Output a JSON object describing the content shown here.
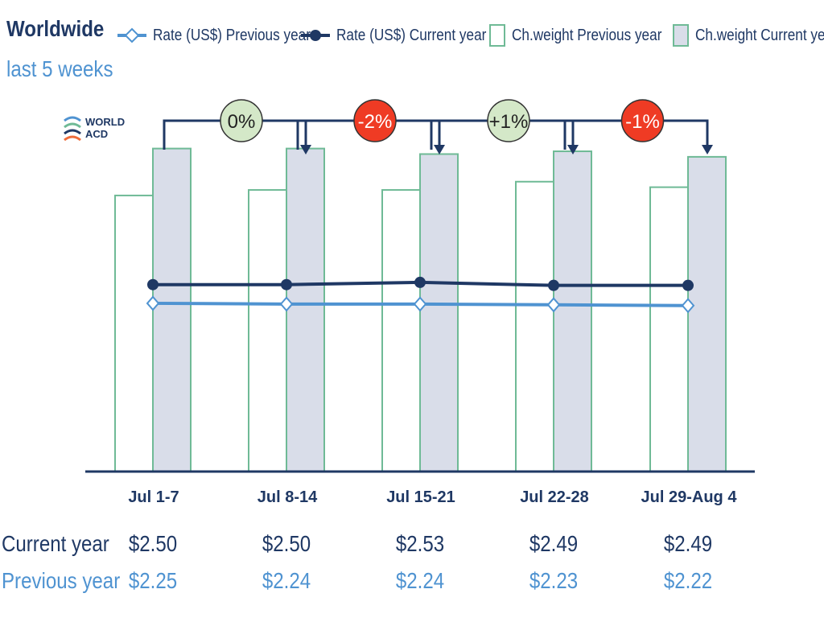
{
  "header": {
    "title": "Worldwide",
    "subtitle": "last 5 weeks"
  },
  "legend": [
    {
      "label": "Rate (US$) Previous year",
      "kind": "line-diamond",
      "color": "#4f93d1"
    },
    {
      "label": "Rate (US$) Current year",
      "kind": "line-dot",
      "color": "#1f3864"
    },
    {
      "label": "Ch.weight Previous year",
      "kind": "bar",
      "color": "#ffffff"
    },
    {
      "label": "Ch.weight Current year",
      "kind": "bar",
      "color": "#d9dde9"
    }
  ],
  "logo": {
    "line1": "WORLD",
    "line2": "ACD"
  },
  "table": {
    "current_label": "Current year",
    "previous_label": "Previous year",
    "current_values": [
      "$2.50",
      "$2.50",
      "$2.53",
      "$2.49",
      "$2.49"
    ],
    "previous_values": [
      "$2.25",
      "$2.24",
      "$2.24",
      "$2.23",
      "$2.22"
    ]
  },
  "colors": {
    "navy": "#1f3864",
    "light_blue": "#4f93d1",
    "bar_border": "#6fba96",
    "bar_current_fill": "#d9dde9",
    "bubble_green": "#d4e8c8",
    "bubble_red": "#ef3b24"
  },
  "chart_data": {
    "type": "bar",
    "categories": [
      "Jul 1-7",
      "Jul 8-14",
      "Jul 15-21",
      "Jul 22-28",
      "Jul 29-Aug 4"
    ],
    "series": [
      {
        "name": "Ch.weight Previous year",
        "type": "bar",
        "values": [
          100,
          102,
          102,
          105,
          103
        ]
      },
      {
        "name": "Ch.weight Current year",
        "type": "bar",
        "values": [
          117,
          117,
          115,
          116,
          114
        ]
      },
      {
        "name": "Rate (US$) Previous year",
        "type": "line",
        "values": [
          2.25,
          2.24,
          2.24,
          2.23,
          2.22
        ]
      },
      {
        "name": "Rate (US$) Current year",
        "type": "line",
        "values": [
          2.5,
          2.5,
          2.53,
          2.49,
          2.49
        ]
      }
    ],
    "weight_ylim": [
      0,
      130
    ],
    "rate_ylim": [
      0,
      4.8
    ],
    "week_over_week_changes": [
      "0%",
      "-2%",
      "+1%",
      "-1%"
    ],
    "change_direction": [
      "neutral",
      "down",
      "up",
      "down"
    ],
    "grid": false,
    "legend_position": "top"
  }
}
